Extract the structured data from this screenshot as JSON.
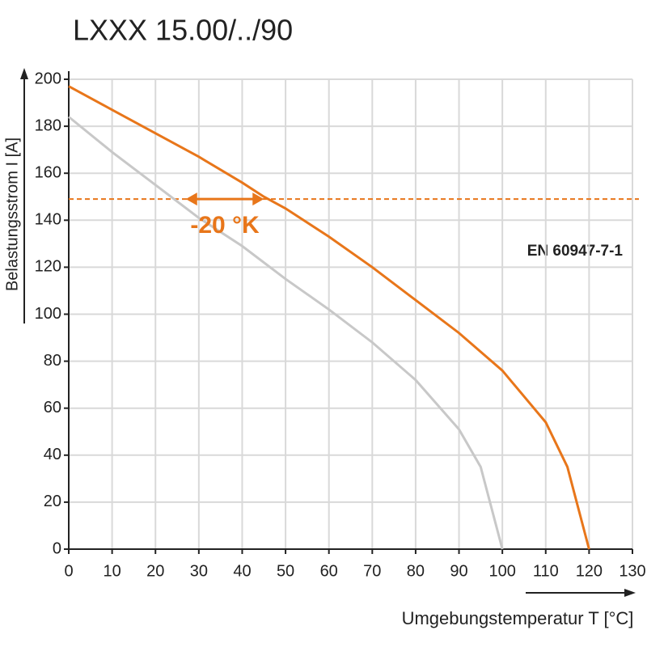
{
  "chart_data": {
    "type": "line",
    "title": "LXXX 15.00/../90",
    "x_label": "Umgebungstemperatur T [°C]",
    "y_label": "Belastungsstrom I [A]",
    "xlim": [
      0,
      130
    ],
    "xticks": [
      0,
      10,
      20,
      30,
      40,
      50,
      60,
      70,
      80,
      90,
      100,
      110,
      120,
      130
    ],
    "ylim": [
      0,
      200
    ],
    "yticks": [
      0,
      20,
      40,
      60,
      80,
      100,
      120,
      140,
      160,
      180,
      200
    ],
    "grid": true,
    "series": [
      {
        "color": "#e8761a",
        "x": [
          0,
          10,
          20,
          30,
          40,
          45,
          50,
          60,
          70,
          80,
          90,
          100,
          110,
          115,
          120
        ],
        "values": [
          197,
          187,
          177,
          167,
          156,
          150,
          145,
          133,
          120,
          106,
          92,
          76,
          54,
          35,
          0
        ]
      },
      {
        "color": "#c8c8c8",
        "x": [
          0,
          10,
          20,
          30,
          40,
          50,
          60,
          70,
          80,
          90,
          95,
          100
        ],
        "values": [
          184,
          169,
          155,
          141,
          129,
          115,
          102,
          88,
          72,
          51,
          35,
          0
        ]
      }
    ],
    "reference_line": {
      "value": 149,
      "color": "#e8761a"
    },
    "annotations": [
      {
        "text": "-20 °K",
        "x": [
          27,
          45
        ],
        "y": 149,
        "color": "#e8761a"
      },
      {
        "text": "EN 60947-7-1"
      }
    ]
  }
}
